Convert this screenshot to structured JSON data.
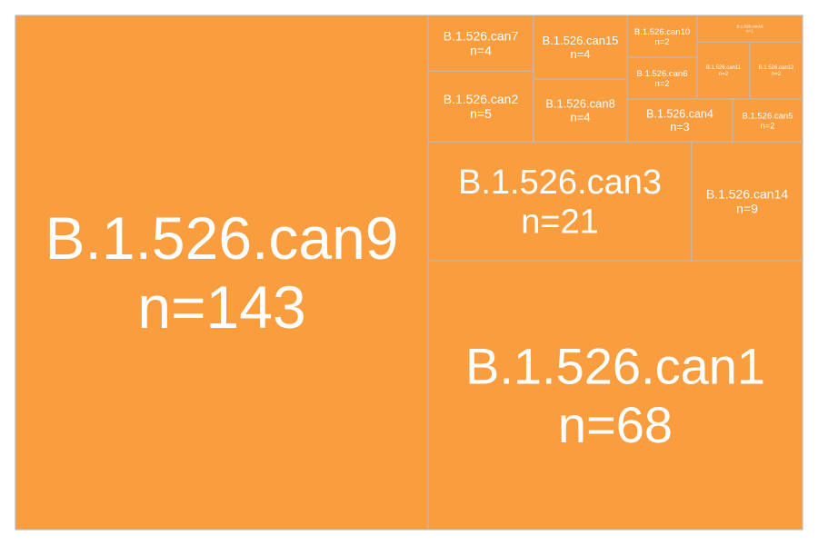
{
  "chart_data": {
    "type": "treemap",
    "tile_color": "#f99d3e",
    "border_color": "#b9b9b9",
    "text_color": "#ffffff",
    "value_prefix": "n=",
    "items": [
      {
        "name": "B.1.526.can9",
        "value": 143
      },
      {
        "name": "B.1.526.can1",
        "value": 68
      },
      {
        "name": "B.1.526.can3",
        "value": 21
      },
      {
        "name": "B.1.526.can14",
        "value": 9
      },
      {
        "name": "B.1.526.can2",
        "value": 5
      },
      {
        "name": "B.1.526.can7",
        "value": 4
      },
      {
        "name": "B.1.526.can15",
        "value": 4
      },
      {
        "name": "B.1.526.can8",
        "value": 4
      },
      {
        "name": "B.1.526.can4",
        "value": 3
      },
      {
        "name": "B.1.526.can10",
        "value": 2
      },
      {
        "name": "B.1.526.can6",
        "value": 2
      },
      {
        "name": "B.1.526.can5",
        "value": 2
      },
      {
        "name": "B.1.526.can11",
        "value": 2
      },
      {
        "name": "B.1.526.can12",
        "value": 2
      },
      {
        "name": "B.1.526.can16",
        "value": 1
      }
    ]
  }
}
